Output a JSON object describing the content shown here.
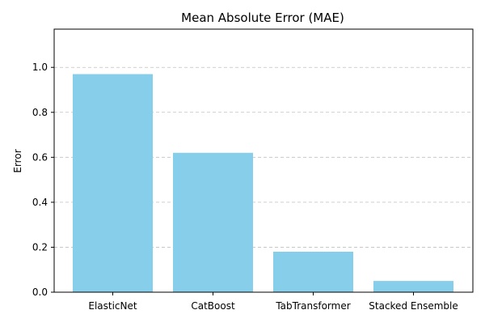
{
  "chart_data": {
    "type": "bar",
    "title": "Mean Absolute Error (MAE)",
    "xlabel": "",
    "ylabel": "Error",
    "categories": [
      "ElasticNet",
      "CatBoost",
      "TabTransformer",
      "Stacked Ensemble"
    ],
    "values": [
      0.97,
      0.62,
      0.18,
      0.05
    ],
    "ylim": [
      0,
      1.17
    ],
    "yticks": [
      0.0,
      0.2,
      0.4,
      0.6,
      0.8,
      1.0
    ],
    "ytick_labels": [
      "0.0",
      "0.2",
      "0.4",
      "0.6",
      "0.8",
      "1.0"
    ],
    "grid": "y-dashed",
    "bar_color": "#87CEEB",
    "grid_color": "#c0c0c0",
    "axis_color": "#000000"
  }
}
